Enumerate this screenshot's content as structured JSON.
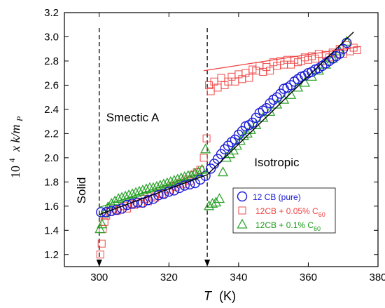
{
  "chart_data": {
    "type": "scatter",
    "xlabel_italic": "T",
    "xlabel_unit": "(K)",
    "ylabel_prefix": "10",
    "ylabel_exp": "4",
    "ylabel_mid": "x k/m",
    "ylabel_sub": "P",
    "xlim": [
      290,
      380
    ],
    "ylim": [
      1.1,
      3.2
    ],
    "xticks": [
      300,
      320,
      340,
      360,
      380
    ],
    "yticks": [
      1.2,
      1.4,
      1.6,
      1.8,
      2.0,
      2.2,
      2.4,
      2.6,
      2.8,
      3.0,
      3.2
    ],
    "grid": false,
    "legend_position": "bottom-right",
    "annotations": {
      "solid": "Solid",
      "smectic": "Smectic A",
      "isotropic": "Isotropic"
    },
    "vlines": [
      300,
      331
    ],
    "series": [
      {
        "name": "12 CB (pure)",
        "legend_main": "12 CB (pure)",
        "legend_sub": "",
        "color": "#1a1ad6",
        "marker": "circle",
        "x": [
          300.5,
          302,
          303.5,
          305,
          306.5,
          308,
          309.5,
          311,
          312.5,
          314,
          315.5,
          317,
          318.5,
          320,
          321.5,
          323,
          324.5,
          326,
          327.5,
          329,
          330.5,
          332,
          333,
          334,
          335,
          336,
          337,
          338,
          339,
          340,
          341,
          342,
          343,
          344,
          345,
          346,
          347,
          348,
          349,
          350,
          351,
          352,
          353,
          354,
          355,
          356,
          357,
          358,
          359,
          360,
          361,
          362,
          363,
          364,
          365,
          366,
          367,
          368,
          369,
          370,
          371
        ],
        "y": [
          1.55,
          1.55,
          1.56,
          1.57,
          1.58,
          1.61,
          1.62,
          1.63,
          1.63,
          1.65,
          1.66,
          1.69,
          1.7,
          1.72,
          1.73,
          1.75,
          1.77,
          1.78,
          1.79,
          1.82,
          1.85,
          1.91,
          1.95,
          1.99,
          2.03,
          2.07,
          2.1,
          2.13,
          2.15,
          2.19,
          2.22,
          2.26,
          2.27,
          2.29,
          2.33,
          2.37,
          2.39,
          2.41,
          2.45,
          2.48,
          2.5,
          2.53,
          2.57,
          2.58,
          2.6,
          2.63,
          2.65,
          2.67,
          2.68,
          2.7,
          2.71,
          2.73,
          2.74,
          2.76,
          2.78,
          2.8,
          2.82,
          2.84,
          2.86,
          2.9,
          2.95
        ],
        "fit_x": [
          300,
          331
        ],
        "fit_y": [
          1.53,
          1.86
        ],
        "fit2_x": [
          331,
          373
        ],
        "fit2_y": [
          1.86,
          3.04
        ]
      },
      {
        "name": "12CB + 0.05% C60",
        "legend_main": "12CB + 0.05% C",
        "legend_sub": "60",
        "color": "#ef4040",
        "marker": "square",
        "x": [
          300.3,
          300.7,
          301,
          301.5,
          302,
          303,
          304,
          305,
          306,
          307,
          308,
          309,
          310,
          311,
          312,
          313,
          314,
          315,
          316,
          317,
          318,
          319,
          320,
          321,
          322,
          323,
          324,
          325,
          326,
          327,
          328,
          329,
          330,
          330.8,
          331.5,
          332,
          333,
          334,
          335,
          336,
          337,
          338,
          339,
          340,
          341,
          342,
          343,
          344,
          345,
          346,
          347,
          348,
          349,
          350,
          351,
          352,
          353,
          354,
          355,
          356,
          357,
          358,
          359,
          360,
          361,
          362,
          363,
          364,
          365,
          366,
          367,
          368,
          369,
          370,
          371,
          372,
          373,
          374
        ],
        "y": [
          1.2,
          1.29,
          1.41,
          1.47,
          1.52,
          1.55,
          1.58,
          1.56,
          1.57,
          1.6,
          1.58,
          1.62,
          1.61,
          1.63,
          1.62,
          1.66,
          1.64,
          1.68,
          1.67,
          1.71,
          1.7,
          1.74,
          1.73,
          1.77,
          1.76,
          1.79,
          1.78,
          1.82,
          1.81,
          1.86,
          1.88,
          1.9,
          2.0,
          2.16,
          2.6,
          2.55,
          2.63,
          2.58,
          2.66,
          2.6,
          2.63,
          2.67,
          2.63,
          2.69,
          2.65,
          2.7,
          2.66,
          2.73,
          2.72,
          2.76,
          2.71,
          2.75,
          2.72,
          2.79,
          2.76,
          2.8,
          2.77,
          2.81,
          2.77,
          2.81,
          2.79,
          2.8,
          2.83,
          2.81,
          2.84,
          2.82,
          2.86,
          2.8,
          2.85,
          2.83,
          2.87,
          2.86,
          2.9,
          2.86,
          2.93,
          2.88,
          2.91,
          2.89
        ],
        "fit_x": [
          330,
          375
        ],
        "fit_y": [
          2.72,
          2.92
        ]
      },
      {
        "name": "12CB + 0.1% C60",
        "legend_main": "12CB + 0.1% C",
        "legend_sub": "60",
        "color": "#1b9b1b",
        "marker": "triangle",
        "x": [
          300.2,
          300.8,
          301.5,
          302.5,
          303.5,
          304.5,
          305.5,
          306.5,
          307.5,
          308.5,
          309.5,
          310.5,
          311.5,
          312.5,
          313.5,
          314.5,
          315.5,
          316.5,
          317.5,
          318.5,
          319.5,
          320.5,
          321.5,
          322.5,
          323.5,
          324.5,
          325.5,
          326.5,
          327.5,
          328.5,
          329.5,
          330.5,
          331.5,
          332.5,
          333.5,
          334.5,
          335.5,
          336.5,
          337.5,
          338.5,
          339.5,
          340.5,
          341.5,
          342.5,
          343.5,
          345,
          347,
          349,
          351,
          353,
          355,
          357,
          359,
          361,
          363,
          365,
          367,
          369,
          371
        ],
        "y": [
          1.41,
          1.45,
          1.54,
          1.59,
          1.62,
          1.64,
          1.66,
          1.67,
          1.68,
          1.69,
          1.7,
          1.71,
          1.72,
          1.73,
          1.74,
          1.75,
          1.75,
          1.76,
          1.77,
          1.78,
          1.79,
          1.8,
          1.81,
          1.82,
          1.83,
          1.84,
          1.85,
          1.85,
          1.87,
          1.88,
          1.9,
          2.07,
          1.6,
          1.62,
          1.63,
          1.66,
          1.88,
          2.0,
          2.03,
          2.06,
          2.1,
          2.14,
          2.18,
          2.2,
          2.23,
          2.27,
          2.33,
          2.38,
          2.44,
          2.48,
          2.52,
          2.58,
          2.62,
          2.67,
          2.72,
          2.77,
          2.82,
          2.88,
          2.96
        ],
        "fit_x": [
          300,
          331
        ],
        "fit_y": [
          1.59,
          1.89
        ]
      }
    ]
  }
}
